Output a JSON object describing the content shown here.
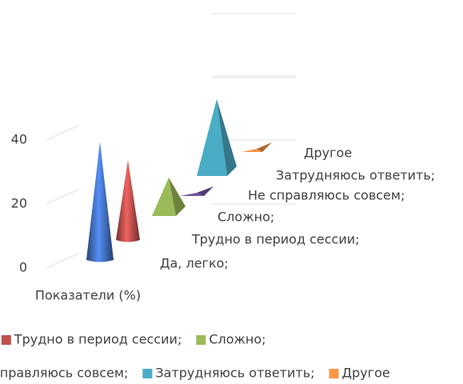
{
  "chart_data": {
    "type": "pyramid3d",
    "categories": [
      "Показатели (%)"
    ],
    "series": [
      {
        "name": "Да, легко;",
        "color": "#4472c4",
        "values": [
          37
        ]
      },
      {
        "name": "Трудно в период сессии;",
        "color": "#c0504d",
        "values": [
          25
        ]
      },
      {
        "name": "Сложно;",
        "color": "#9bbb59",
        "values": [
          12
        ]
      },
      {
        "name": "Не справляюсь совсем;",
        "color": "#7153a0",
        "values": [
          1
        ]
      },
      {
        "name": "Затрудняюсь ответить;",
        "color": "#4bacc6",
        "values": [
          24
        ]
      },
      {
        "name": "Другое",
        "color": "#f79646",
        "values": [
          1
        ]
      }
    ],
    "ylim": [
      0,
      80
    ],
    "yticks": [
      0,
      20,
      40
    ],
    "grid": true,
    "legend": "bottom"
  }
}
